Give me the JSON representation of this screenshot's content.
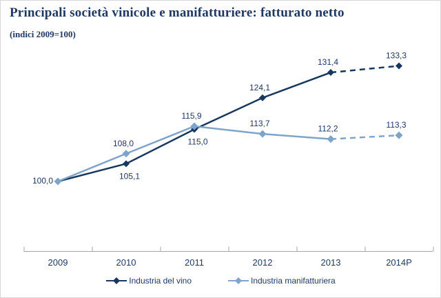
{
  "chart_data": {
    "type": "line",
    "title": "Principali società vinicole e manifatturiere: fatturato netto",
    "subtitle": "(indici 2009=100)",
    "categories": [
      "2009",
      "2010",
      "2011",
      "2012",
      "2013",
      "2014P"
    ],
    "series": [
      {
        "name": "Industria del vino",
        "color": "#17375e",
        "values": [
          100.0,
          105.1,
          115.0,
          124.1,
          131.4,
          133.3
        ],
        "labels": [
          "",
          "105,1",
          "115,0",
          "124,1",
          "131,4",
          "133,3"
        ],
        "label_positions": [
          "none",
          "below",
          "below",
          "above",
          "above",
          "above"
        ],
        "dashed_from_index": 4
      },
      {
        "name": "Industria manifatturiera",
        "color": "#7ea4cb",
        "values": [
          100.0,
          108.0,
          115.9,
          113.7,
          112.2,
          113.3
        ],
        "labels": [
          "100,0",
          "108,0",
          "115,9",
          "113,7",
          "112,2",
          "113,3"
        ],
        "label_positions": [
          "left",
          "above",
          "above",
          "above",
          "above",
          "above"
        ],
        "dashed_from_index": 4
      }
    ],
    "xlabel": "",
    "ylabel": "",
    "ylim": [
      80,
      140
    ],
    "y_axis_visible": false,
    "grid": false,
    "legend_position": "bottom",
    "decimal_separator": ",",
    "axis_color": "#a6a6a6"
  }
}
